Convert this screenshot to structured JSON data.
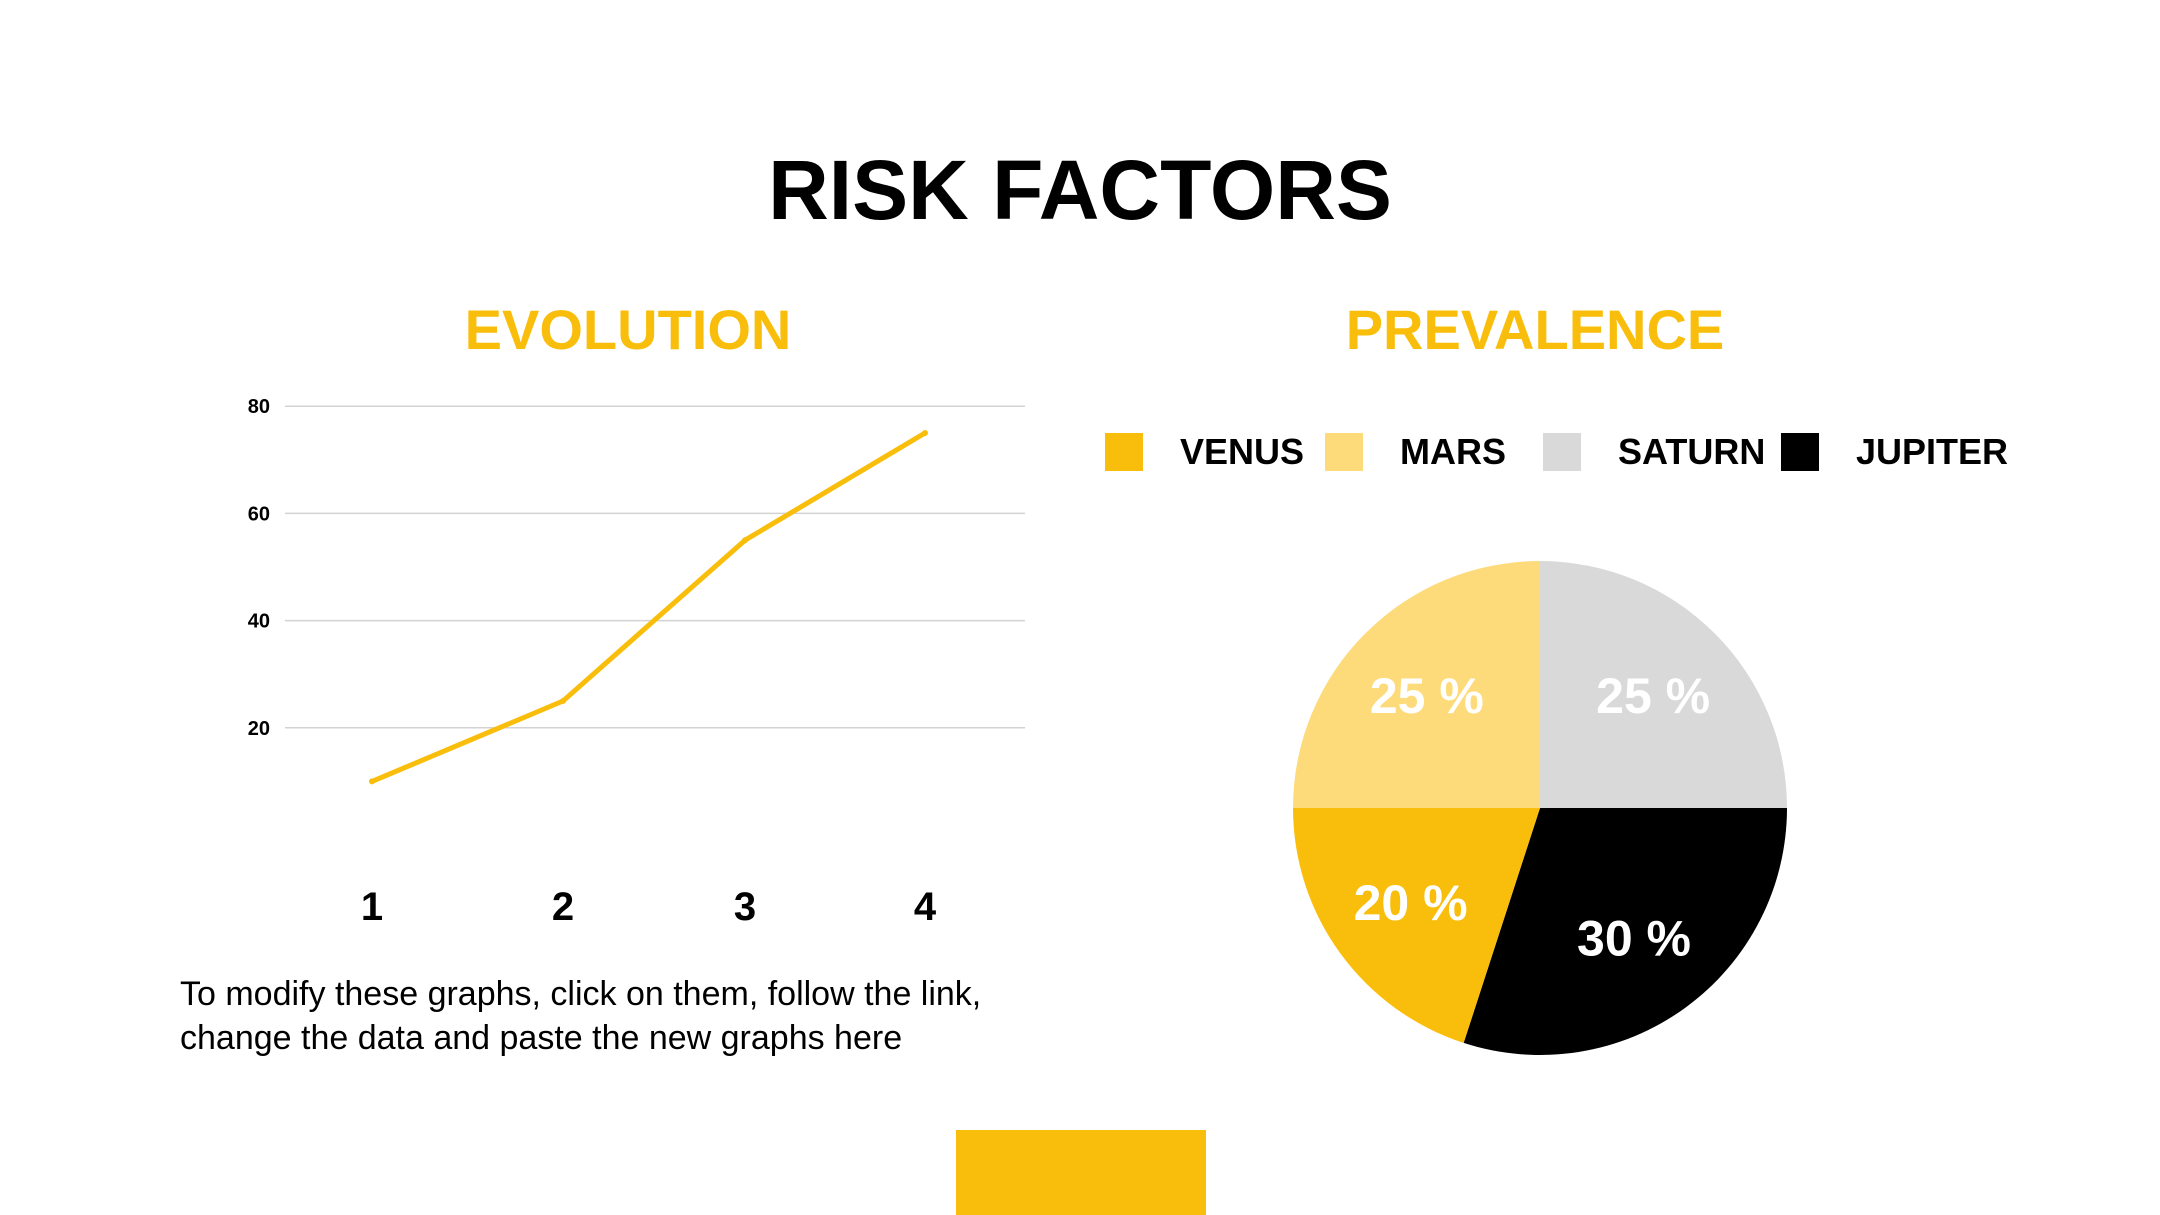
{
  "title": "RISK FACTORS",
  "colors": {
    "accent": "#F9BE0B",
    "light_yellow": "#FDDB7B",
    "gray": "#D9D9D9",
    "black": "#000000",
    "gridline": "#D3D3D3"
  },
  "footer_note": "To modify these graphs, click on them, follow the link, change the data and paste the new graphs here",
  "chart_data": [
    {
      "type": "line",
      "title": "EVOLUTION",
      "x": [
        "1",
        "2",
        "3",
        "4"
      ],
      "series": [
        {
          "values": [
            10,
            25,
            55,
            75
          ]
        }
      ],
      "yticks": [
        20,
        40,
        60,
        80
      ],
      "ylim": [
        0,
        80
      ],
      "grid": true
    },
    {
      "type": "pie",
      "title": "PREVALENCE",
      "legend_placement": "top",
      "slices": [
        {
          "label": "SATURN",
          "value": 25,
          "display": "25 %"
        },
        {
          "label": "JUPITER",
          "value": 30,
          "display": "30 %"
        },
        {
          "label": "VENUS",
          "value": 20,
          "display": "20 %"
        },
        {
          "label": "MARS",
          "value": 25,
          "display": "25 %"
        }
      ],
      "legend": [
        "VENUS",
        "MARS",
        "SATURN",
        "JUPITER"
      ]
    }
  ]
}
